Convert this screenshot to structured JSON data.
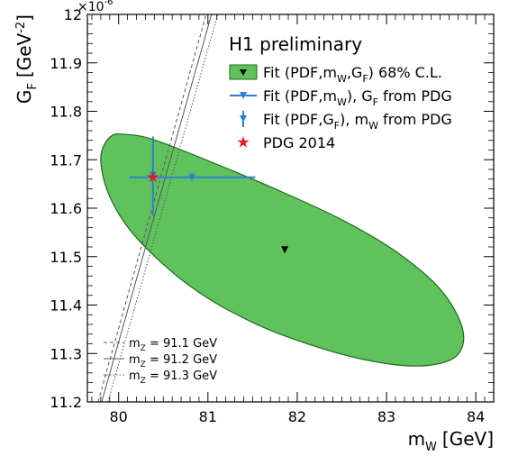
{
  "colors": {
    "ellipse_fill": "#5fc25c",
    "ellipse_stroke": "#1f6b1c",
    "fit_mw_blue": "#2f7fd8",
    "fit_gf_blue": "#2f7fd8",
    "pdg_red": "#e41a1c",
    "mz_lines": "#555555"
  },
  "chart_data": {
    "type": "scatter",
    "title": "H1 preliminary",
    "xlabel": "m",
    "xlabel_sub": "W",
    "xlabel_unit": "[GeV]",
    "ylabel": "G",
    "ylabel_sub": "F",
    "ylabel_unit": "[GeV",
    "ylabel_exp": "-2",
    "ylabel_close": "]",
    "y_multiplier": "×10",
    "y_multiplier_exp": "-6",
    "xlim": [
      79.65,
      84.2
    ],
    "ylim": [
      11.2,
      12.0
    ],
    "xticks": [
      80,
      81,
      82,
      83,
      84
    ],
    "xtick_labels": [
      "80",
      "81",
      "82",
      "83",
      "84"
    ],
    "yticks": [
      11.2,
      11.3,
      11.4,
      11.5,
      11.6,
      11.7,
      11.8,
      11.9,
      12.0
    ],
    "ytick_labels": [
      "11.2",
      "11.3",
      "11.4",
      "11.5",
      "11.6",
      "11.7",
      "11.8",
      "11.9",
      "12"
    ],
    "grid": false,
    "legend_position": "top-right",
    "series": [
      {
        "name": "Fit (PDF,m_W,G_F) 68% C.L.",
        "legend": {
          "text": "Fit (PDF,m",
          "sub1": "W",
          "mid": ",G",
          "sub2": "F",
          "tail": ") 68% C.L."
        },
        "kind": "ellipse",
        "center": [
          81.86,
          11.514
        ],
        "ellipse_outline": [
          [
            79.91,
            11.748
          ],
          [
            80.1,
            11.752
          ],
          [
            80.4,
            11.741
          ],
          [
            81.0,
            11.698
          ],
          [
            81.8,
            11.636
          ],
          [
            82.5,
            11.576
          ],
          [
            83.1,
            11.511
          ],
          [
            83.6,
            11.433
          ],
          [
            83.85,
            11.352
          ],
          [
            83.8,
            11.298
          ],
          [
            83.5,
            11.276
          ],
          [
            83.0,
            11.279
          ],
          [
            82.3,
            11.309
          ],
          [
            81.5,
            11.364
          ],
          [
            80.8,
            11.439
          ],
          [
            80.2,
            11.539
          ],
          [
            79.9,
            11.624
          ],
          [
            79.8,
            11.703
          ],
          [
            79.91,
            11.748
          ]
        ]
      },
      {
        "name": "Fit (PDF,m_W), G_F from PDG",
        "legend": {
          "text": "Fit (PDF,m",
          "sub1": "W",
          "mid": "), G",
          "sub2": "F",
          "tail": " from PDG"
        },
        "kind": "horizontal-error",
        "x": 80.82,
        "y": 11.6638,
        "xerr": [
          80.12,
          81.53
        ]
      },
      {
        "name": "Fit (PDF,G_F), m_W from PDG",
        "legend": {
          "text": "Fit (PDF,G",
          "sub1": "F",
          "mid": "), m",
          "sub2": "W",
          "tail": " from PDG"
        },
        "kind": "vertical-error",
        "x": 80.385,
        "y": 11.668,
        "yerr": [
          11.585,
          11.748
        ]
      },
      {
        "name": "PDG 2014",
        "legend": {
          "text": "PDG 2014"
        },
        "kind": "star",
        "x": 80.385,
        "y": 11.6638
      }
    ],
    "mz_lines": [
      {
        "label_pre": "m",
        "label_sub": "Z",
        "label_post": " = 91.1 GeV",
        "style": "dashed",
        "points": [
          [
            79.77,
            11.2
          ],
          [
            80.98,
            12.0
          ]
        ]
      },
      {
        "label_pre": "m",
        "label_sub": "Z",
        "label_post": " = 91.2 GeV",
        "style": "solid",
        "points": [
          [
            79.81,
            11.2
          ],
          [
            81.04,
            12.0
          ]
        ]
      },
      {
        "label_pre": "m",
        "label_sub": "Z",
        "label_post": " = 91.3 GeV",
        "style": "dotted",
        "points": [
          [
            79.88,
            11.2
          ],
          [
            81.11,
            12.0
          ]
        ]
      }
    ]
  }
}
